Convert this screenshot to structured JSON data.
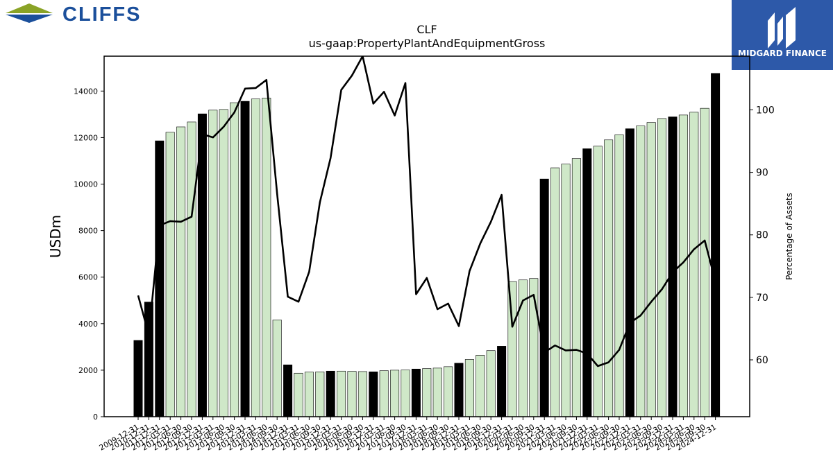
{
  "header": {
    "company_logo_text": "CLIFFS",
    "partner_logo_text": "MIDGARD FINANCE"
  },
  "colors": {
    "bar_annual": "#000000",
    "bar_quarterly": "#cfe8c8",
    "line": "#000000",
    "cliffs_blue": "#1b4f9b",
    "cliffs_olive": "#8aa326",
    "midgard_blue": "#2d59a9"
  },
  "chart_data": {
    "type": "bar",
    "title": "CLF",
    "subtitle": "us-gaap:PropertyPlantAndEquipmentGross",
    "ylabel": "USDm",
    "y2label": "Percentage of Assets",
    "ylim": [
      0,
      15500
    ],
    "y2lim": [
      50.9,
      108.6
    ],
    "yticks": [
      0,
      2000,
      4000,
      6000,
      8000,
      10000,
      12000,
      14000
    ],
    "y2ticks": [
      60,
      70,
      80,
      90,
      100
    ],
    "categories": [
      "2009-12-31",
      "2010-12-31",
      "2011-12-31",
      "2012-03-31",
      "2012-06-30",
      "2012-09-30",
      "2012-12-31",
      "2013-03-31",
      "2013-06-30",
      "2013-09-30",
      "2013-12-31",
      "2014-03-31",
      "2014-06-30",
      "2014-09-30",
      "2014-12-31",
      "2015-03-31",
      "2015-06-30",
      "2015-09-30",
      "2015-12-31",
      "2016-03-31",
      "2016-06-30",
      "2016-09-30",
      "2016-12-31",
      "2017-03-31",
      "2017-06-30",
      "2017-09-30",
      "2017-12-31",
      "2018-03-31",
      "2018-06-30",
      "2018-09-30",
      "2018-12-31",
      "2019-03-31",
      "2019-06-30",
      "2019-09-30",
      "2019-12-31",
      "2020-03-31",
      "2020-06-30",
      "2020-09-30",
      "2020-12-31",
      "2021-03-31",
      "2021-06-30",
      "2021-09-30",
      "2021-12-31",
      "2022-03-31",
      "2022-06-30",
      "2022-09-30",
      "2022-12-31",
      "2023-03-31",
      "2023-06-30",
      "2023-09-30",
      "2023-12-31",
      "2024-03-31",
      "2024-06-30",
      "2024-09-30",
      "2024-12-31"
    ],
    "bar_series": {
      "name": "PropertyPlantAndEquipmentGross",
      "values": [
        3280,
        4930,
        11860,
        12230,
        12460,
        12670,
        13020,
        13180,
        13210,
        13500,
        13560,
        13660,
        13700,
        4160,
        2230,
        1870,
        1920,
        1930,
        1960,
        1960,
        1950,
        1940,
        1930,
        1980,
        2000,
        2010,
        2050,
        2070,
        2090,
        2150,
        2300,
        2460,
        2640,
        2840,
        3030,
        5810,
        5880,
        5940,
        10220,
        10700,
        10860,
        11100,
        11520,
        11630,
        11900,
        12120,
        12380,
        12500,
        12650,
        12820,
        12890,
        12970,
        13090,
        13260,
        14760
      ],
      "annual_flags": [
        1,
        1,
        1,
        0,
        0,
        0,
        1,
        0,
        0,
        0,
        1,
        0,
        0,
        0,
        1,
        0,
        0,
        0,
        1,
        0,
        0,
        0,
        1,
        0,
        0,
        0,
        1,
        0,
        0,
        0,
        1,
        0,
        0,
        0,
        1,
        0,
        0,
        0,
        1,
        0,
        0,
        0,
        1,
        0,
        0,
        0,
        1,
        0,
        0,
        0,
        1,
        0,
        0,
        0,
        1
      ]
    },
    "line_series": {
      "name": "Percentage of Assets",
      "values": [
        70.3,
        64.0,
        81.5,
        82.2,
        82.1,
        82.9,
        96.1,
        95.6,
        97.3,
        99.6,
        103.4,
        103.5,
        104.8,
        86.6,
        70.1,
        69.3,
        74.1,
        85.2,
        92.3,
        103.2,
        105.5,
        108.6,
        101.0,
        102.9,
        99.1,
        104.3,
        70.5,
        73.1,
        68.1,
        69.0,
        65.4,
        74.2,
        78.6,
        82.1,
        86.4,
        65.3,
        69.5,
        70.4,
        61.2,
        62.3,
        61.5,
        61.6,
        61.0,
        59.0,
        59.6,
        61.6,
        65.9,
        67.1,
        69.3,
        71.3,
        74.0,
        75.6,
        77.7,
        79.1,
        72.6
      ]
    }
  }
}
